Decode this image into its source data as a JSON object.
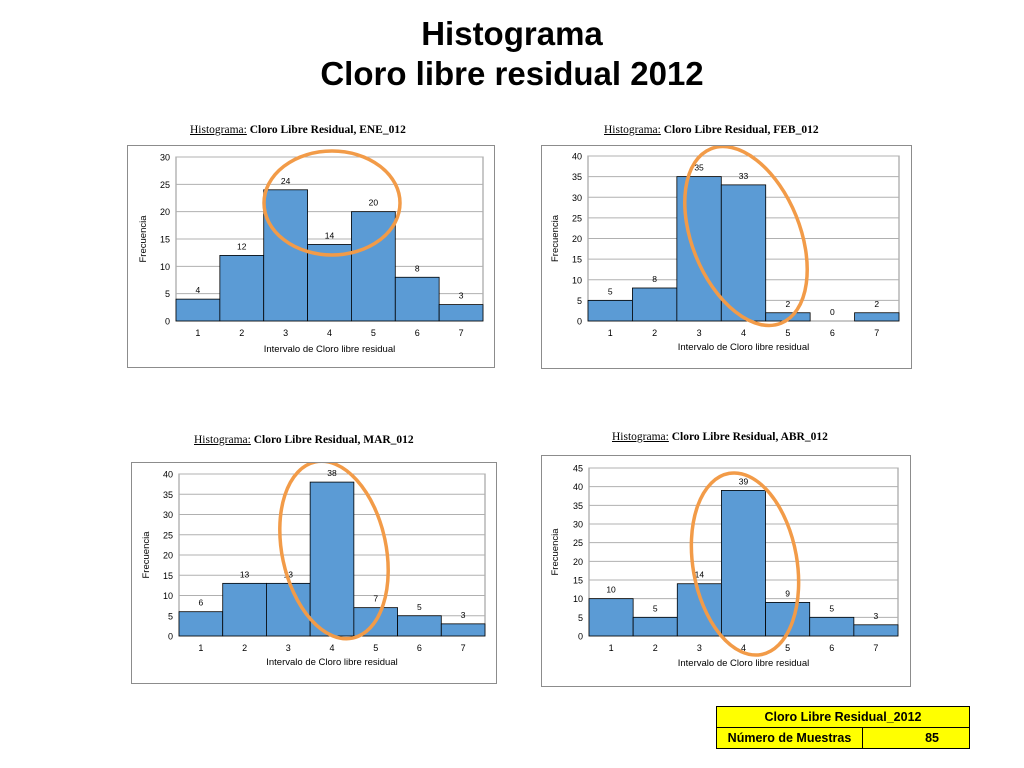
{
  "slide": {
    "title_line1": "Histograma",
    "title_line2": "Cloro libre residual 2012"
  },
  "colors": {
    "bar": "#5b9bd5",
    "bar_border": "#000000",
    "highlight_ellipse": "#f29b48",
    "summary_fill": "#ffff00",
    "grid": "#b0b0b0"
  },
  "chart_data": [
    {
      "type": "bar",
      "heading_prefix": "Histograma:",
      "heading_rest": "Cloro Libre Residual, ENE_012",
      "xlabel": "Intervalo de Cloro libre residual",
      "ylabel": "Frecuencia",
      "categories": [
        "1",
        "2",
        "3",
        "4",
        "5",
        "6",
        "7"
      ],
      "values": [
        4,
        12,
        24,
        14,
        20,
        8,
        3
      ],
      "ylim": [
        0,
        30
      ],
      "yticks": [
        0,
        5,
        10,
        15,
        20,
        25,
        30
      ],
      "highlight": "bins 3-5",
      "grid": true
    },
    {
      "type": "bar",
      "heading_prefix": "Histograma:",
      "heading_rest": "Cloro Libre Residual, FEB_012",
      "xlabel": "Intervalo de Cloro libre residual",
      "ylabel": "Frecuencia",
      "categories": [
        "1",
        "2",
        "3",
        "4",
        "5",
        "6",
        "7"
      ],
      "values": [
        5,
        8,
        35,
        33,
        2,
        0,
        2
      ],
      "ylim": [
        0,
        40
      ],
      "yticks": [
        0,
        5,
        10,
        15,
        20,
        25,
        30,
        35,
        40
      ],
      "highlight": "bins 3-4",
      "grid": true
    },
    {
      "type": "bar",
      "heading_prefix": "Histograma:",
      "heading_rest": "Cloro Libre Residual, MAR_012",
      "xlabel": "Intervalo de Cloro libre residual",
      "ylabel": "Frecuencia",
      "categories": [
        "1",
        "2",
        "3",
        "4",
        "5",
        "6",
        "7"
      ],
      "values": [
        6,
        13,
        13,
        38,
        7,
        5,
        3
      ],
      "ylim": [
        0,
        40
      ],
      "yticks": [
        0,
        5,
        10,
        15,
        20,
        25,
        30,
        35,
        40
      ],
      "highlight": "bins 3-4",
      "grid": true
    },
    {
      "type": "bar",
      "heading_prefix": "Histograma:",
      "heading_rest": "Cloro Libre Residual, ABR_012",
      "xlabel": "Intervalo de Cloro libre residual",
      "ylabel": "Frecuencia",
      "categories": [
        "1",
        "2",
        "3",
        "4",
        "5",
        "6",
        "7"
      ],
      "values": [
        10,
        5,
        14,
        39,
        9,
        5,
        3
      ],
      "ylim": [
        0,
        45
      ],
      "yticks": [
        0,
        5,
        10,
        15,
        20,
        25,
        30,
        35,
        40,
        45
      ],
      "highlight": "bins 3-4",
      "grid": true
    }
  ],
  "summary_table": {
    "title": "Cloro Libre Residual_2012",
    "row_label": "Número de Muestras",
    "row_value": "85"
  }
}
